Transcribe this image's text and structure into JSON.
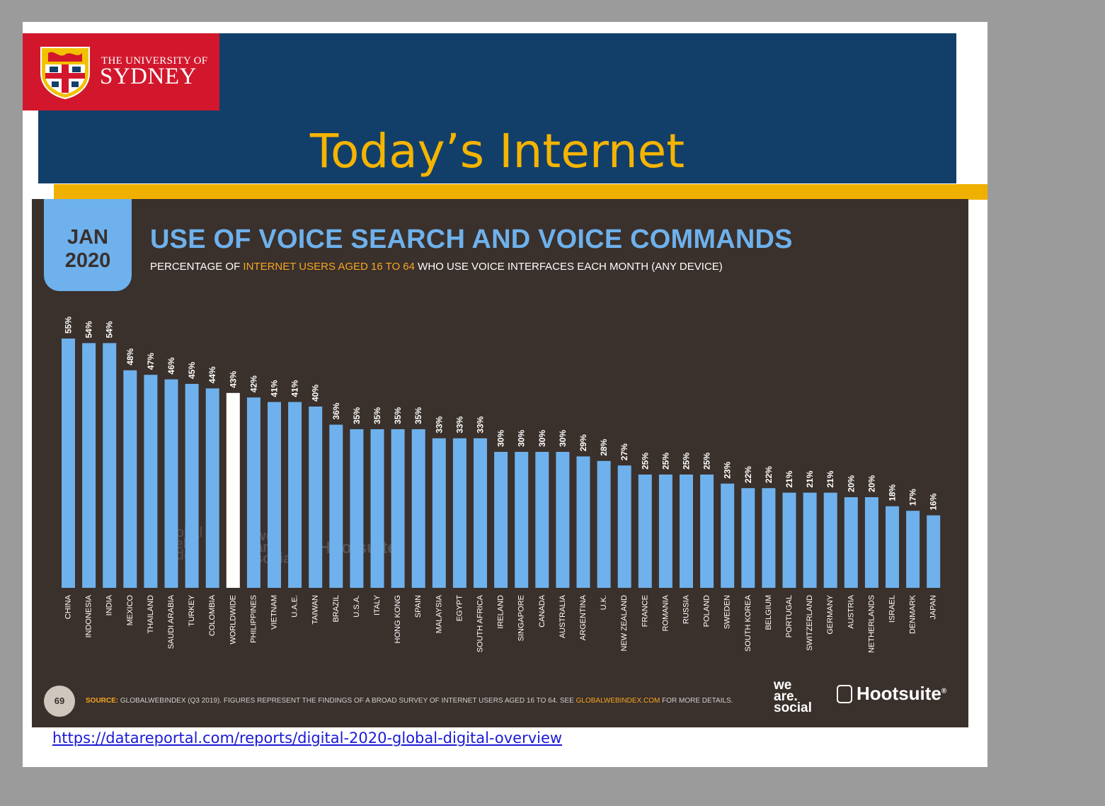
{
  "slide": {
    "title": "Today’s Internet",
    "logo_line1": "THE UNIVERSITY OF",
    "logo_line2": "SYDNEY",
    "source_url": "https://datareportal.com/reports/digital-2020-global-digital-overview"
  },
  "infographic": {
    "date_month": "JAN",
    "date_year": "2020",
    "subtitle_before": "PERCENTAGE OF ",
    "subtitle_highlight": "INTERNET USERS AGED 16 TO 64",
    "subtitle_after": " WHO USE VOICE INTERFACES EACH MONTH (ANY DEVICE)",
    "page_number": "69",
    "source_label": "SOURCE:",
    "source_text": " GLOBALWEBINDEX (Q3 2019). FIGURES REPRESENT THE FINDINGS OF A BROAD SURVEY OF INTERNET USERS AGED 16 TO 64. SEE ",
    "source_link": "GLOBALWEBINDEX.COM",
    "source_after": " FOR MORE DETAILS.",
    "brand_was_1": "we",
    "brand_was_2": "are.",
    "brand_was_3": "social",
    "brand_hootsuite": "Hootsuite",
    "brand_reg": "®",
    "watermark_gwi_1": "global",
    "watermark_gwi_2": "web",
    "watermark_gwi_3": "index",
    "watermark_was_1": "we",
    "watermark_was_2": "are.",
    "watermark_was_3": "social",
    "watermark_hootsuite": "Hootsuite"
  },
  "colors": {
    "bar": "#6eb1ec",
    "highlight_bar": "#ffffff",
    "panel": "#3a302c",
    "title_band": "#123f6a",
    "accent_gold": "#f0b000",
    "logo_red": "#d2172d"
  },
  "chart_data": {
    "type": "bar",
    "title": "USE OF VOICE SEARCH AND VOICE COMMANDS",
    "categories": [
      "CHINA",
      "INDONESIA",
      "INDIA",
      "MEXICO",
      "THAILAND",
      "SAUDI ARABIA",
      "TURKEY",
      "COLOMBIA",
      "WORLDWIDE",
      "PHILIPPINES",
      "VIETNAM",
      "U.A.E.",
      "TAIWAN",
      "BRAZIL",
      "U.S.A.",
      "ITALY",
      "HONG KONG",
      "SPAIN",
      "MALAYSIA",
      "EGYPT",
      "SOUTH AFRICA",
      "IRELAND",
      "SINGAPORE",
      "CANADA",
      "AUSTRALIA",
      "ARGENTINA",
      "U.K.",
      "NEW ZEALAND",
      "FRANCE",
      "ROMANIA",
      "RUSSIA",
      "POLAND",
      "SWEDEN",
      "SOUTH KOREA",
      "BELGIUM",
      "PORTUGAL",
      "SWITZERLAND",
      "GERMANY",
      "AUSTRIA",
      "NETHERLANDS",
      "ISRAEL",
      "DENMARK",
      "JAPAN"
    ],
    "values": [
      55,
      54,
      54,
      48,
      47,
      46,
      45,
      44,
      43,
      42,
      41,
      41,
      40,
      36,
      35,
      35,
      35,
      35,
      33,
      33,
      33,
      30,
      30,
      30,
      30,
      29,
      28,
      27,
      25,
      25,
      25,
      25,
      23,
      22,
      22,
      21,
      21,
      21,
      20,
      20,
      18,
      17,
      16
    ],
    "labels": [
      "55%",
      "54%",
      "54%",
      "48%",
      "47%",
      "46%",
      "45%",
      "44%",
      "43%",
      "42%",
      "41%",
      "41%",
      "40%",
      "36%",
      "35%",
      "35%",
      "35%",
      "35%",
      "33%",
      "33%",
      "33%",
      "30%",
      "30%",
      "30%",
      "30%",
      "29%",
      "28%",
      "27%",
      "25%",
      "25%",
      "25%",
      "25%",
      "23%",
      "22%",
      "22%",
      "21%",
      "21%",
      "21%",
      "20%",
      "20%",
      "18%",
      "17%",
      "16%"
    ],
    "highlight_category": "WORLDWIDE",
    "value_unit": "%",
    "ylim": [
      0,
      55
    ],
    "grid": false,
    "legend": "none"
  }
}
